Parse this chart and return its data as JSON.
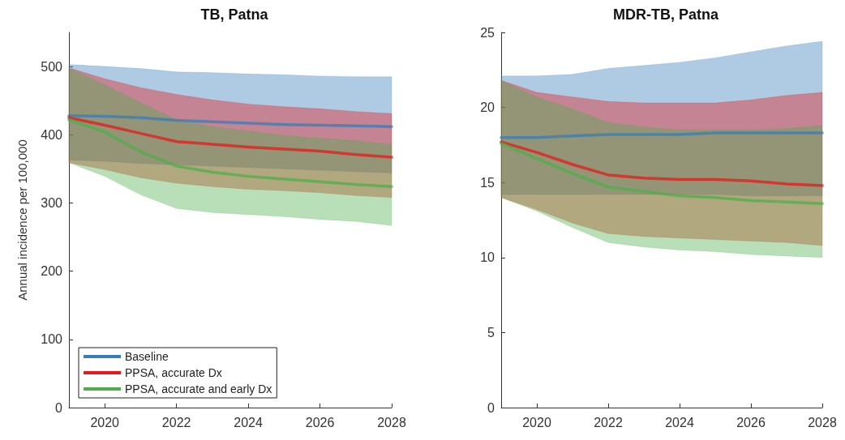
{
  "chart_data": [
    {
      "type": "line",
      "title": "TB, Patna",
      "ylabel": "Annual incidence per 100,000",
      "x": [
        2019,
        2020,
        2021,
        2022,
        2023,
        2024,
        2025,
        2026,
        2027,
        2028
      ],
      "xlim": [
        2019,
        2028
      ],
      "xticks": [
        2020,
        2022,
        2024,
        2026,
        2028
      ],
      "ylim": [
        0,
        550
      ],
      "yticks": [
        0,
        100,
        200,
        300,
        400,
        500
      ],
      "grid": false,
      "legend": "bottom left",
      "marker": "none",
      "line_style": "solid",
      "series": [
        {
          "name": "Baseline",
          "color": "#377eb8",
          "values": [
            428,
            427,
            425,
            421,
            419,
            417,
            415,
            414,
            413,
            412
          ],
          "lower": [
            363,
            361,
            358,
            356,
            354,
            352,
            350,
            348,
            346,
            344
          ],
          "upper": [
            503,
            500,
            497,
            492,
            491,
            489,
            488,
            486,
            485,
            485
          ]
        },
        {
          "name": "PPSA, accurate Dx",
          "color": "#e41a1c",
          "values": [
            425,
            414,
            402,
            390,
            386,
            382,
            379,
            376,
            371,
            367
          ],
          "lower": [
            359,
            349,
            337,
            329,
            324,
            320,
            318,
            315,
            311,
            308
          ],
          "upper": [
            498,
            482,
            469,
            459,
            451,
            445,
            441,
            438,
            434,
            431
          ]
        },
        {
          "name": "PPSA, accurate and early Dx",
          "color": "#4daf4a",
          "values": [
            422,
            404,
            375,
            354,
            345,
            339,
            335,
            331,
            327,
            324
          ],
          "lower": [
            359,
            339,
            312,
            292,
            286,
            283,
            280,
            276,
            273,
            267
          ],
          "upper": [
            498,
            473,
            447,
            422,
            412,
            405,
            399,
            395,
            391,
            386
          ]
        }
      ]
    },
    {
      "type": "line",
      "title": "MDR-TB, Patna",
      "x": [
        2019,
        2020,
        2021,
        2022,
        2023,
        2024,
        2025,
        2026,
        2027,
        2028
      ],
      "xlim": [
        2019,
        2028
      ],
      "xticks": [
        2020,
        2022,
        2024,
        2026,
        2028
      ],
      "ylim": [
        0,
        25
      ],
      "yticks": [
        0,
        5,
        10,
        15,
        20,
        25
      ],
      "grid": false,
      "legend": false,
      "marker": "none",
      "line_style": "solid",
      "series": [
        {
          "color": "#377eb8",
          "values": [
            18.0,
            18.0,
            18.1,
            18.2,
            18.2,
            18.2,
            18.3,
            18.3,
            18.3,
            18.3
          ],
          "lower": [
            14.2,
            14.2,
            14.2,
            14.2,
            14.2,
            14.2,
            14.2,
            14.1,
            14.1,
            14.1
          ],
          "upper": [
            22.1,
            22.1,
            22.2,
            22.6,
            22.8,
            23.0,
            23.3,
            23.7,
            24.1,
            24.4
          ]
        },
        {
          "color": "#e41a1c",
          "values": [
            17.7,
            17.0,
            16.2,
            15.5,
            15.3,
            15.2,
            15.2,
            15.1,
            14.9,
            14.8
          ],
          "lower": [
            14.0,
            13.2,
            12.3,
            11.6,
            11.4,
            11.3,
            11.2,
            11.1,
            11.0,
            10.8
          ],
          "upper": [
            21.8,
            21.0,
            20.7,
            20.4,
            20.3,
            20.3,
            20.3,
            20.5,
            20.8,
            21.0
          ]
        },
        {
          "color": "#4daf4a",
          "values": [
            17.6,
            16.6,
            15.6,
            14.7,
            14.4,
            14.1,
            14.0,
            13.8,
            13.7,
            13.6
          ],
          "lower": [
            14.0,
            13.1,
            12.0,
            11.0,
            10.7,
            10.5,
            10.4,
            10.2,
            10.1,
            10.0
          ],
          "upper": [
            21.8,
            20.7,
            19.9,
            19.0,
            18.7,
            18.5,
            18.5,
            18.5,
            18.6,
            18.8
          ]
        }
      ]
    }
  ]
}
